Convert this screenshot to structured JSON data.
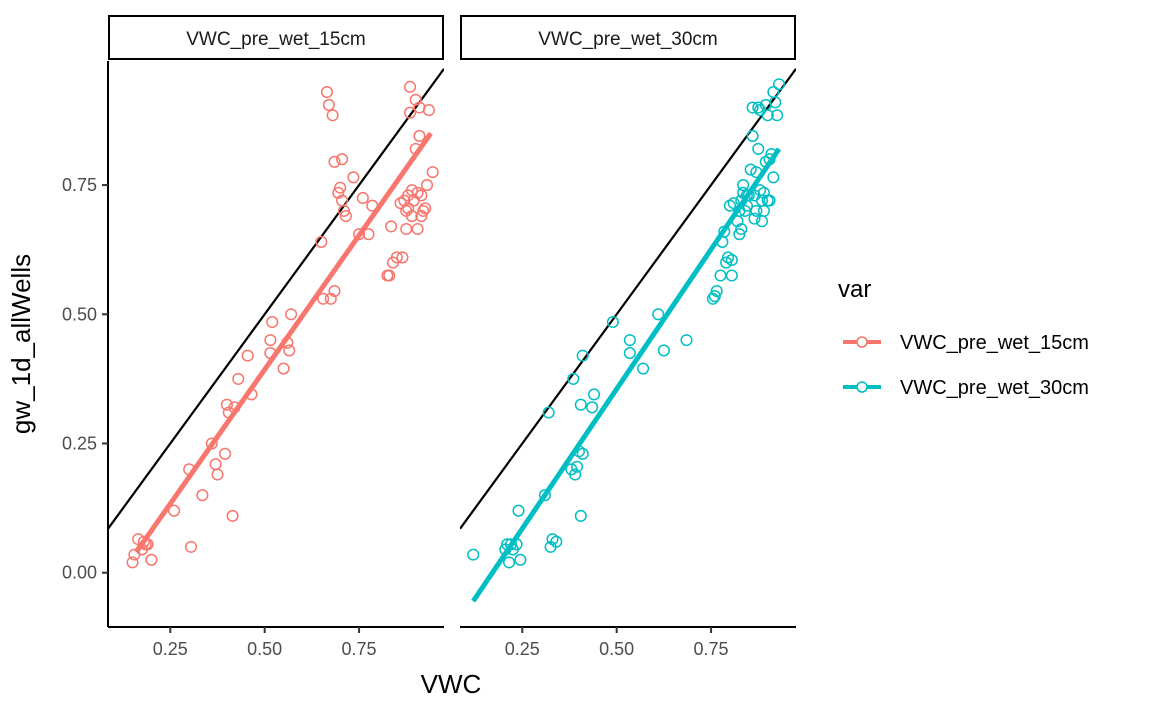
{
  "chart_data": {
    "type": "scatter",
    "facet_by": "var",
    "xlabel": "VWC",
    "ylabel": "gw_1d_allWells",
    "xlim": [
      0.085,
      0.975
    ],
    "ylim": [
      -0.105,
      0.99
    ],
    "x_ticks": [
      0.25,
      0.5,
      0.75
    ],
    "x_tick_labels": [
      "0.25",
      "0.50",
      "0.75"
    ],
    "y_ticks": [
      0.0,
      0.25,
      0.5,
      0.75
    ],
    "y_tick_labels": [
      "0.00",
      "0.25",
      "0.50",
      "0.75"
    ],
    "grid": false,
    "legend": {
      "title": "var",
      "position": "right",
      "entries": [
        "VWC_pre_wet_15cm",
        "VWC_pre_wet_30cm"
      ]
    },
    "reference_line": {
      "slope": 1,
      "intercept": 0,
      "color": "#000000"
    },
    "panels": [
      {
        "strip_label": "VWC_pre_wet_15cm",
        "color": "#F8766D",
        "fit_line": {
          "x": [
            0.16,
            0.94
          ],
          "y": [
            0.04,
            0.85
          ]
        },
        "points": [
          [
            0.15,
            0.02
          ],
          [
            0.155,
            0.035
          ],
          [
            0.165,
            0.065
          ],
          [
            0.175,
            0.045
          ],
          [
            0.18,
            0.06
          ],
          [
            0.185,
            0.055
          ],
          [
            0.19,
            0.055
          ],
          [
            0.2,
            0.025
          ],
          [
            0.26,
            0.12
          ],
          [
            0.3,
            0.2
          ],
          [
            0.305,
            0.05
          ],
          [
            0.335,
            0.15
          ],
          [
            0.36,
            0.25
          ],
          [
            0.37,
            0.21
          ],
          [
            0.375,
            0.19
          ],
          [
            0.395,
            0.23
          ],
          [
            0.4,
            0.325
          ],
          [
            0.405,
            0.31
          ],
          [
            0.415,
            0.11
          ],
          [
            0.42,
            0.32
          ],
          [
            0.43,
            0.375
          ],
          [
            0.455,
            0.42
          ],
          [
            0.465,
            0.345
          ],
          [
            0.515,
            0.45
          ],
          [
            0.52,
            0.485
          ],
          [
            0.515,
            0.425
          ],
          [
            0.55,
            0.395
          ],
          [
            0.56,
            0.445
          ],
          [
            0.565,
            0.43
          ],
          [
            0.57,
            0.5
          ],
          [
            0.65,
            0.64
          ],
          [
            0.655,
            0.53
          ],
          [
            0.665,
            0.93
          ],
          [
            0.67,
            0.905
          ],
          [
            0.675,
            0.53
          ],
          [
            0.68,
            0.885
          ],
          [
            0.685,
            0.545
          ],
          [
            0.685,
            0.795
          ],
          [
            0.695,
            0.735
          ],
          [
            0.7,
            0.745
          ],
          [
            0.705,
            0.72
          ],
          [
            0.705,
            0.8
          ],
          [
            0.71,
            0.7
          ],
          [
            0.715,
            0.69
          ],
          [
            0.735,
            0.765
          ],
          [
            0.75,
            0.655
          ],
          [
            0.76,
            0.725
          ],
          [
            0.775,
            0.655
          ],
          [
            0.785,
            0.71
          ],
          [
            0.825,
            0.575
          ],
          [
            0.83,
            0.575
          ],
          [
            0.835,
            0.67
          ],
          [
            0.84,
            0.6
          ],
          [
            0.85,
            0.61
          ],
          [
            0.86,
            0.715
          ],
          [
            0.865,
            0.61
          ],
          [
            0.87,
            0.72
          ],
          [
            0.875,
            0.7
          ],
          [
            0.875,
            0.665
          ],
          [
            0.88,
            0.73
          ],
          [
            0.88,
            0.705
          ],
          [
            0.885,
            0.94
          ],
          [
            0.885,
            0.89
          ],
          [
            0.89,
            0.74
          ],
          [
            0.89,
            0.69
          ],
          [
            0.895,
            0.72
          ],
          [
            0.9,
            0.915
          ],
          [
            0.9,
            0.82
          ],
          [
            0.905,
            0.735
          ],
          [
            0.905,
            0.665
          ],
          [
            0.91,
            0.9
          ],
          [
            0.91,
            0.845
          ],
          [
            0.915,
            0.73
          ],
          [
            0.915,
            0.69
          ],
          [
            0.92,
            0.7
          ],
          [
            0.925,
            0.705
          ],
          [
            0.93,
            0.75
          ],
          [
            0.935,
            0.895
          ],
          [
            0.945,
            0.775
          ]
        ]
      },
      {
        "strip_label": "VWC_pre_wet_30cm",
        "color": "#00BFC4",
        "fit_line": {
          "x": [
            0.12,
            0.93
          ],
          "y": [
            -0.055,
            0.82
          ]
        },
        "points": [
          [
            0.12,
            0.035
          ],
          [
            0.205,
            0.045
          ],
          [
            0.21,
            0.055
          ],
          [
            0.215,
            0.02
          ],
          [
            0.22,
            0.055
          ],
          [
            0.225,
            0.045
          ],
          [
            0.235,
            0.055
          ],
          [
            0.24,
            0.12
          ],
          [
            0.245,
            0.025
          ],
          [
            0.31,
            0.15
          ],
          [
            0.32,
            0.31
          ],
          [
            0.325,
            0.05
          ],
          [
            0.33,
            0.065
          ],
          [
            0.34,
            0.06
          ],
          [
            0.38,
            0.2
          ],
          [
            0.385,
            0.375
          ],
          [
            0.39,
            0.19
          ],
          [
            0.395,
            0.205
          ],
          [
            0.4,
            0.235
          ],
          [
            0.405,
            0.325
          ],
          [
            0.405,
            0.11
          ],
          [
            0.41,
            0.42
          ],
          [
            0.41,
            0.23
          ],
          [
            0.435,
            0.32
          ],
          [
            0.44,
            0.345
          ],
          [
            0.49,
            0.485
          ],
          [
            0.535,
            0.425
          ],
          [
            0.535,
            0.45
          ],
          [
            0.57,
            0.395
          ],
          [
            0.61,
            0.5
          ],
          [
            0.625,
            0.43
          ],
          [
            0.685,
            0.45
          ],
          [
            0.755,
            0.53
          ],
          [
            0.76,
            0.535
          ],
          [
            0.765,
            0.545
          ],
          [
            0.775,
            0.575
          ],
          [
            0.78,
            0.64
          ],
          [
            0.785,
            0.66
          ],
          [
            0.79,
            0.6
          ],
          [
            0.795,
            0.61
          ],
          [
            0.8,
            0.71
          ],
          [
            0.805,
            0.575
          ],
          [
            0.805,
            0.605
          ],
          [
            0.81,
            0.715
          ],
          [
            0.82,
            0.68
          ],
          [
            0.825,
            0.655
          ],
          [
            0.825,
            0.7
          ],
          [
            0.83,
            0.665
          ],
          [
            0.83,
            0.72
          ],
          [
            0.835,
            0.735
          ],
          [
            0.835,
            0.75
          ],
          [
            0.84,
            0.7
          ],
          [
            0.845,
            0.73
          ],
          [
            0.845,
            0.71
          ],
          [
            0.85,
            0.73
          ],
          [
            0.855,
            0.78
          ],
          [
            0.86,
            0.845
          ],
          [
            0.86,
            0.9
          ],
          [
            0.865,
            0.73
          ],
          [
            0.865,
            0.685
          ],
          [
            0.87,
            0.775
          ],
          [
            0.87,
            0.7
          ],
          [
            0.875,
            0.9
          ],
          [
            0.875,
            0.82
          ],
          [
            0.88,
            0.895
          ],
          [
            0.88,
            0.74
          ],
          [
            0.885,
            0.72
          ],
          [
            0.885,
            0.68
          ],
          [
            0.89,
            0.735
          ],
          [
            0.89,
            0.7
          ],
          [
            0.895,
            0.795
          ],
          [
            0.895,
            0.905
          ],
          [
            0.9,
            0.72
          ],
          [
            0.9,
            0.885
          ],
          [
            0.905,
            0.8
          ],
          [
            0.905,
            0.72
          ],
          [
            0.91,
            0.81
          ],
          [
            0.915,
            0.93
          ],
          [
            0.915,
            0.765
          ],
          [
            0.92,
            0.91
          ],
          [
            0.925,
            0.885
          ],
          [
            0.93,
            0.945
          ]
        ]
      }
    ]
  }
}
